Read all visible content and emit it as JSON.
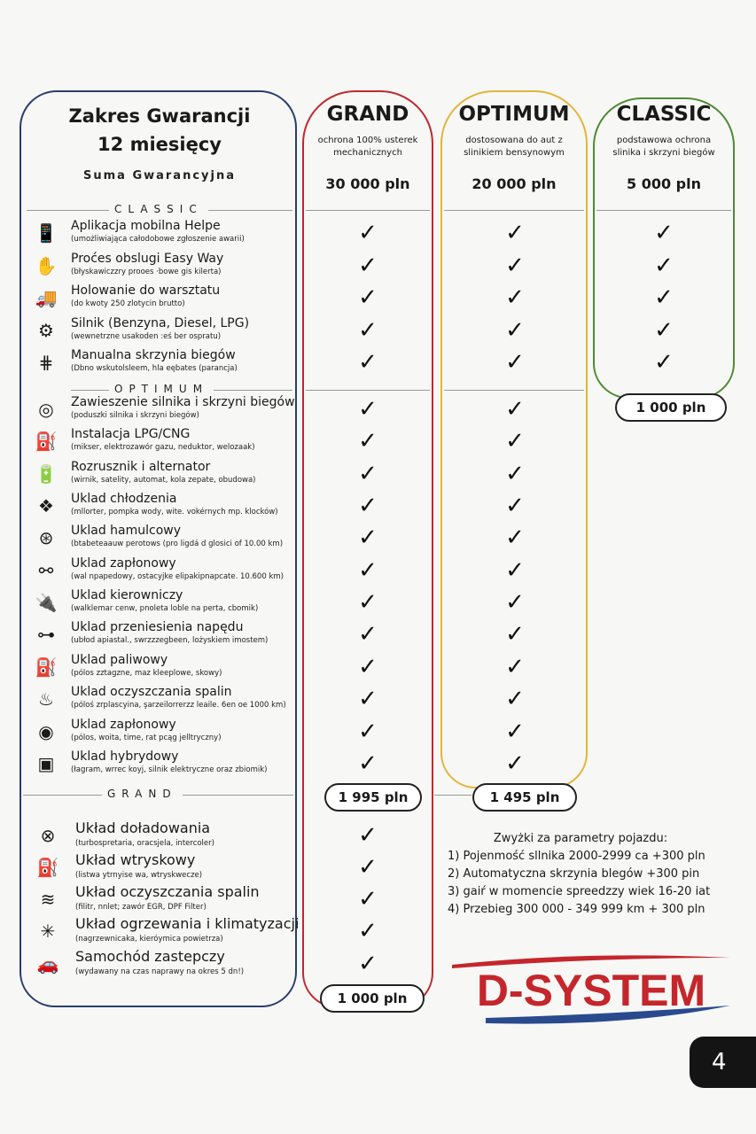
{
  "header": {
    "title_line1": "Zakres Gwarancji",
    "title_line2": "12 miesięcy",
    "sum_label": "Suma Gwarancyjna"
  },
  "columns": [
    {
      "name": "GRAND",
      "desc1": "ochrona 100% usterek",
      "desc2": "mechanicznych",
      "sum": "30 000 pln",
      "price": "1 000 pln",
      "color": "#c0282e"
    },
    {
      "name": "OPTIMUM",
      "desc1": "dostosowana do aut z",
      "desc2": "slinikiem bensynowym",
      "sum": "20 000 pln",
      "price": "1 495 pln",
      "color": "#e2b53a"
    },
    {
      "name": "CLASSIC",
      "desc1": "podstawowa ochrona",
      "desc2": "slinika i skrzyni biegów",
      "sum": "5 000 pln",
      "price": "1 000 pln",
      "color": "#4f8a35"
    }
  ],
  "extra_price": "1 995 pln",
  "check_symbol": "✓",
  "sections": [
    {
      "label": "CLASSIC",
      "items": [
        {
          "icon": "phone-hand-icon",
          "glyph": "📱",
          "title": "Aplikacja mobilna Helpe",
          "sub": "(umożliwiająca całodobowe zgłoszenie awarii)"
        },
        {
          "icon": "easy-hand-icon",
          "glyph": "✋",
          "title": "Proćes obslugi Easy Way",
          "sub": "(błyskawiczzry prooes ·bowe gis kilerta)"
        },
        {
          "icon": "tow-truck-icon",
          "glyph": "🚚",
          "title": "Holowanie do warsztatu",
          "sub": "(do kwoty 250 zlotycin brutto)"
        },
        {
          "icon": "engine-icon",
          "glyph": "⚙",
          "title": "Silnik (Benzyna, Diesel, LPG)",
          "sub": "(wewnetrzne usakoden :eś ber ospratu)"
        },
        {
          "icon": "gear-shift-icon",
          "glyph": "⋕",
          "title": "Manualna skrzynia biegów",
          "sub": "(Dbno wskutolsleem, hla eębates (parancja)"
        }
      ]
    },
    {
      "label": "OPTIMUM",
      "items": [
        {
          "icon": "engine-mount-icon",
          "glyph": "◎",
          "title": "Zawieszenie silnika i skrzyni biegów",
          "sub": "(poduszki silnika i skrzyni biegów)"
        },
        {
          "icon": "lpg-icon",
          "glyph": "⛽",
          "title": "Instalacja LPG/CNG",
          "sub": "(mikser, elektrozawór gazu, neduktor, welozaak)"
        },
        {
          "icon": "starter-icon",
          "glyph": "🔋",
          "title": "Rozrusznik i alternator",
          "sub": "(wirnik, satelity, automat, kola zepate, obudowa)"
        },
        {
          "icon": "radiator-icon",
          "glyph": "❖",
          "title": "Uklad chłodzenia",
          "sub": "(mllorter, pompka wody, wite. vokérnych mp. klocków)"
        },
        {
          "icon": "brake-disc-icon",
          "glyph": "⊛",
          "title": "Uklad hamulcowy",
          "sub": "(btabeteaauw perotows (pro ligdá d glosici of 10.00 km)"
        },
        {
          "icon": "driveshaft-icon",
          "glyph": "⚯",
          "title": "Uklad zapłonowy",
          "sub": "(wal npapedowy, ostacyjke elipakipnapcate. 10.600 km)"
        },
        {
          "icon": "spark-plug-icon",
          "glyph": "🔌",
          "title": "Uklad kierowniczy",
          "sub": "(walklemar cenw, pnoleta loble na perta, cbomik)"
        },
        {
          "icon": "axle-icon",
          "glyph": "⊶",
          "title": "Uklad przeniesienia napędu",
          "sub": "(ubłod apiastal., swrzzzegbeen, lożyskiem imostem)"
        },
        {
          "icon": "fuel-pump-icon",
          "glyph": "⛽",
          "title": "Uklad paliwowy",
          "sub": "(pólos zztagzne, maz kleeplowe, skowy)"
        },
        {
          "icon": "exhaust-icon",
          "glyph": "♨",
          "title": "Uklad oczyszczania spalin",
          "sub": "(póloś zrplascyina, şarzeilorrerzz leaile. 6en oe 1000 km)"
        },
        {
          "icon": "ignition-icon",
          "glyph": "◉",
          "title": "Uklad zapłonowy",
          "sub": "(pólos, woita, time, rat pcąg jelltryczny)"
        },
        {
          "icon": "hybrid-battery-icon",
          "glyph": "▣",
          "title": "Uklad hybrydowy",
          "sub": "(łagram, wrrec koyj, silnik elektryczne oraz zbiomik)"
        }
      ]
    },
    {
      "label": "GRAND",
      "items": [
        {
          "icon": "turbo-icon",
          "glyph": "⊗",
          "title": "Układ doładowania",
          "sub": "(turbospretaria, oracsjela, intercoler)"
        },
        {
          "icon": "injector-icon",
          "glyph": "⛽",
          "title": "Układ wtryskowy",
          "sub": "(listwa ytrnyise wa, wtryskwecze)"
        },
        {
          "icon": "filter-icon",
          "glyph": "≋",
          "title": "Układ oczyszczania spalin",
          "sub": "(filitr, nnlet; zawór EGR, DPF Filter)"
        },
        {
          "icon": "climate-icon",
          "glyph": "✳",
          "title": "Układ ogrzewania i klimatyzacji",
          "sub": "(nagrzewnicaka, kieróymica powietrza)"
        },
        {
          "icon": "car-icon",
          "glyph": "🚗",
          "title": "Samochód zastepczy",
          "sub": "(wydawany na czas naprawy na okres 5 dn!)"
        }
      ]
    }
  ],
  "notes": {
    "title": "Zwyżki za parametry pojazdu:",
    "items": [
      "1) Pojenmość sllnika 2000-2999 ca +300 pln",
      "2) Automatyczna skrzynia blegów +300 pin",
      "3) gaiŕ w momencie spreedzzy wiek 16-20 iat",
      "4) Przebieg 300 000 - 349 999 km + 300 pln"
    ]
  },
  "logo": {
    "text": "D-SYSTEM",
    "red": "#c4262c",
    "blue": "#2a4a8e"
  },
  "page_number": "4"
}
